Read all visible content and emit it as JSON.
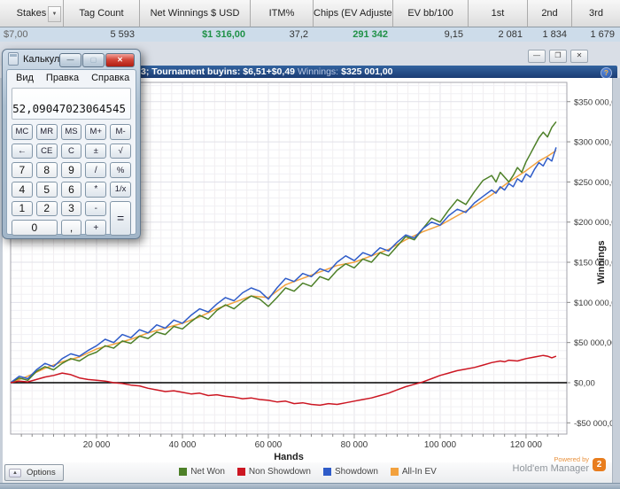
{
  "report": {
    "headers": [
      "Stakes",
      "Tag Count",
      "Net Winnings $ USD",
      "ITM%",
      "Chips (EV Adjusted)",
      "EV bb/100",
      "1st",
      "2nd",
      "3rd"
    ],
    "values": [
      "$7,00",
      "5 593",
      "$1 316,00",
      "37,2",
      "291 342",
      "9,15",
      "2 081",
      "1 834",
      "1 679"
    ]
  },
  "icons": {
    "dropdown": "▼",
    "window_minimize": "—",
    "window_restore": "❐",
    "window_close": "✕",
    "help": "?",
    "options_arrow": "▲",
    "calc_minimize": "—",
    "calc_maximize": "▢",
    "calc_close": "✕"
  },
  "graph_window": {
    "title_left": "3; Tournament buyins: $6,51+$0,49",
    "winnings_label": "Winnings:",
    "winnings_value": "$325 001,00"
  },
  "calculator": {
    "title": "Калькулятор",
    "menu": [
      "Вид",
      "Правка",
      "Справка"
    ],
    "display": "52,09047023064545",
    "keys": [
      "MC",
      "MR",
      "MS",
      "M+",
      "M-",
      "←",
      "CE",
      "C",
      "±",
      "√",
      "7",
      "8",
      "9",
      "/",
      "%",
      "4",
      "5",
      "6",
      "*",
      "1/x",
      "1",
      "2",
      "3",
      "-",
      "=",
      "0",
      ",",
      "+"
    ]
  },
  "footer": {
    "options_label": "Options",
    "powered_by": "Powered by",
    "brand": "Hold'em Manager",
    "brand_badge": "2"
  },
  "colors": {
    "positive_value": "#1f9147",
    "title_bar": "#1b3c74",
    "values_row_bg": "#cddcea"
  },
  "chart_data": {
    "type": "line",
    "xlabel": "Hands",
    "ylabel": "Winnings",
    "xlim": [
      0,
      129500
    ],
    "ylim": [
      -64000,
      374000
    ],
    "x_ticks": [
      20000,
      40000,
      60000,
      80000,
      100000,
      120000
    ],
    "x_tick_labels": [
      "20 000",
      "40 000",
      "60 000",
      "80 000",
      "100 000",
      "120 000"
    ],
    "y_ticks": [
      -50000,
      0,
      50000,
      100000,
      150000,
      200000,
      250000,
      300000,
      350000
    ],
    "y_tick_labels": [
      "-$50 000,00",
      "$0,00",
      "$50 000,00",
      "$100 000,00",
      "$150 000,00",
      "$200 000,00",
      "$250 000,00",
      "$300 000,00",
      "$350 000,00"
    ],
    "grid": true,
    "zero_line": true,
    "legend_position": "bottom",
    "series": [
      {
        "name": "Net Won",
        "color": "#4d8028",
        "points": [
          [
            0,
            0
          ],
          [
            2000,
            6000
          ],
          [
            4000,
            3000
          ],
          [
            6000,
            14000
          ],
          [
            8000,
            20000
          ],
          [
            10000,
            16000
          ],
          [
            12000,
            24000
          ],
          [
            14000,
            30000
          ],
          [
            16000,
            27000
          ],
          [
            18000,
            34000
          ],
          [
            20000,
            38000
          ],
          [
            22000,
            46000
          ],
          [
            24000,
            43000
          ],
          [
            26000,
            52000
          ],
          [
            28000,
            49000
          ],
          [
            30000,
            58000
          ],
          [
            32000,
            55000
          ],
          [
            34000,
            63000
          ],
          [
            36000,
            60000
          ],
          [
            38000,
            70000
          ],
          [
            40000,
            67000
          ],
          [
            42000,
            76000
          ],
          [
            44000,
            84000
          ],
          [
            46000,
            79000
          ],
          [
            48000,
            90000
          ],
          [
            50000,
            97000
          ],
          [
            52000,
            92000
          ],
          [
            54000,
            101000
          ],
          [
            56000,
            108000
          ],
          [
            58000,
            104000
          ],
          [
            60000,
            95000
          ],
          [
            62000,
            106000
          ],
          [
            64000,
            118000
          ],
          [
            66000,
            114000
          ],
          [
            68000,
            124000
          ],
          [
            70000,
            120000
          ],
          [
            72000,
            132000
          ],
          [
            74000,
            128000
          ],
          [
            76000,
            140000
          ],
          [
            78000,
            148000
          ],
          [
            80000,
            143000
          ],
          [
            82000,
            154000
          ],
          [
            84000,
            150000
          ],
          [
            86000,
            162000
          ],
          [
            88000,
            158000
          ],
          [
            90000,
            170000
          ],
          [
            92000,
            182000
          ],
          [
            94000,
            178000
          ],
          [
            96000,
            192000
          ],
          [
            98000,
            205000
          ],
          [
            100000,
            200000
          ],
          [
            102000,
            215000
          ],
          [
            104000,
            228000
          ],
          [
            106000,
            222000
          ],
          [
            108000,
            238000
          ],
          [
            110000,
            252000
          ],
          [
            112000,
            258000
          ],
          [
            113000,
            250000
          ],
          [
            114000,
            262000
          ],
          [
            115000,
            256000
          ],
          [
            116000,
            250000
          ],
          [
            117000,
            258000
          ],
          [
            118000,
            268000
          ],
          [
            119000,
            262000
          ],
          [
            120000,
            275000
          ],
          [
            121000,
            285000
          ],
          [
            122000,
            295000
          ],
          [
            123000,
            305000
          ],
          [
            124000,
            312000
          ],
          [
            125000,
            306000
          ],
          [
            126000,
            318000
          ],
          [
            127000,
            325000
          ]
        ]
      },
      {
        "name": "Non Showdown",
        "color": "#cc1622",
        "points": [
          [
            0,
            0
          ],
          [
            2000,
            2000
          ],
          [
            4000,
            1000
          ],
          [
            6000,
            4000
          ],
          [
            8000,
            7000
          ],
          [
            10000,
            9000
          ],
          [
            12000,
            12000
          ],
          [
            14000,
            10000
          ],
          [
            16000,
            6000
          ],
          [
            18000,
            4000
          ],
          [
            20000,
            3000
          ],
          [
            22000,
            2000
          ],
          [
            24000,
            0
          ],
          [
            26000,
            -1000
          ],
          [
            28000,
            -3000
          ],
          [
            30000,
            -4000
          ],
          [
            32000,
            -7000
          ],
          [
            34000,
            -9000
          ],
          [
            36000,
            -11000
          ],
          [
            38000,
            -10000
          ],
          [
            40000,
            -12000
          ],
          [
            42000,
            -14000
          ],
          [
            44000,
            -13000
          ],
          [
            46000,
            -16000
          ],
          [
            48000,
            -15000
          ],
          [
            50000,
            -17000
          ],
          [
            52000,
            -18000
          ],
          [
            54000,
            -20000
          ],
          [
            56000,
            -19000
          ],
          [
            58000,
            -21000
          ],
          [
            60000,
            -22000
          ],
          [
            62000,
            -24000
          ],
          [
            64000,
            -23000
          ],
          [
            66000,
            -26000
          ],
          [
            68000,
            -25000
          ],
          [
            70000,
            -27000
          ],
          [
            72000,
            -28000
          ],
          [
            74000,
            -26000
          ],
          [
            76000,
            -27000
          ],
          [
            78000,
            -25000
          ],
          [
            80000,
            -23000
          ],
          [
            82000,
            -21000
          ],
          [
            84000,
            -19000
          ],
          [
            86000,
            -16000
          ],
          [
            88000,
            -13000
          ],
          [
            90000,
            -9000
          ],
          [
            92000,
            -5000
          ],
          [
            94000,
            -2000
          ],
          [
            96000,
            1000
          ],
          [
            98000,
            5000
          ],
          [
            100000,
            9000
          ],
          [
            102000,
            12000
          ],
          [
            104000,
            15000
          ],
          [
            106000,
            17000
          ],
          [
            108000,
            19000
          ],
          [
            110000,
            22000
          ],
          [
            112000,
            25000
          ],
          [
            114000,
            27000
          ],
          [
            115000,
            26000
          ],
          [
            116000,
            28000
          ],
          [
            118000,
            27000
          ],
          [
            120000,
            30000
          ],
          [
            122000,
            32000
          ],
          [
            124000,
            34000
          ],
          [
            125000,
            33000
          ],
          [
            126000,
            31000
          ],
          [
            127000,
            33000
          ]
        ]
      },
      {
        "name": "Showdown",
        "color": "#2f5cc9",
        "points": [
          [
            0,
            0
          ],
          [
            2000,
            8000
          ],
          [
            4000,
            5000
          ],
          [
            6000,
            16000
          ],
          [
            8000,
            24000
          ],
          [
            10000,
            20000
          ],
          [
            12000,
            30000
          ],
          [
            14000,
            36000
          ],
          [
            16000,
            33000
          ],
          [
            18000,
            40000
          ],
          [
            20000,
            46000
          ],
          [
            22000,
            54000
          ],
          [
            24000,
            50000
          ],
          [
            26000,
            60000
          ],
          [
            28000,
            56000
          ],
          [
            30000,
            66000
          ],
          [
            32000,
            62000
          ],
          [
            34000,
            72000
          ],
          [
            36000,
            68000
          ],
          [
            38000,
            78000
          ],
          [
            40000,
            74000
          ],
          [
            42000,
            84000
          ],
          [
            44000,
            92000
          ],
          [
            46000,
            88000
          ],
          [
            48000,
            98000
          ],
          [
            50000,
            106000
          ],
          [
            52000,
            102000
          ],
          [
            54000,
            112000
          ],
          [
            56000,
            118000
          ],
          [
            58000,
            114000
          ],
          [
            60000,
            104000
          ],
          [
            62000,
            118000
          ],
          [
            64000,
            130000
          ],
          [
            66000,
            126000
          ],
          [
            68000,
            136000
          ],
          [
            70000,
            132000
          ],
          [
            72000,
            142000
          ],
          [
            74000,
            138000
          ],
          [
            76000,
            150000
          ],
          [
            78000,
            158000
          ],
          [
            80000,
            152000
          ],
          [
            82000,
            162000
          ],
          [
            84000,
            158000
          ],
          [
            86000,
            168000
          ],
          [
            88000,
            164000
          ],
          [
            90000,
            175000
          ],
          [
            92000,
            184000
          ],
          [
            94000,
            180000
          ],
          [
            96000,
            192000
          ],
          [
            98000,
            200000
          ],
          [
            100000,
            196000
          ],
          [
            102000,
            208000
          ],
          [
            104000,
            216000
          ],
          [
            106000,
            212000
          ],
          [
            108000,
            224000
          ],
          [
            110000,
            232000
          ],
          [
            112000,
            240000
          ],
          [
            113000,
            236000
          ],
          [
            114000,
            244000
          ],
          [
            115000,
            240000
          ],
          [
            116000,
            248000
          ],
          [
            117000,
            244000
          ],
          [
            118000,
            254000
          ],
          [
            119000,
            250000
          ],
          [
            120000,
            260000
          ],
          [
            121000,
            256000
          ],
          [
            122000,
            266000
          ],
          [
            123000,
            274000
          ],
          [
            124000,
            270000
          ],
          [
            125000,
            280000
          ],
          [
            126000,
            276000
          ],
          [
            127000,
            293000
          ]
        ]
      },
      {
        "name": "All-In EV",
        "color": "#f2a13e",
        "points": [
          [
            0,
            0
          ],
          [
            4000,
            8000
          ],
          [
            8000,
            18000
          ],
          [
            12000,
            26000
          ],
          [
            16000,
            32000
          ],
          [
            20000,
            42000
          ],
          [
            24000,
            48000
          ],
          [
            28000,
            54000
          ],
          [
            32000,
            62000
          ],
          [
            36000,
            68000
          ],
          [
            40000,
            74000
          ],
          [
            44000,
            82000
          ],
          [
            48000,
            92000
          ],
          [
            52000,
            100000
          ],
          [
            56000,
            108000
          ],
          [
            60000,
            106000
          ],
          [
            64000,
            122000
          ],
          [
            68000,
            130000
          ],
          [
            72000,
            138000
          ],
          [
            76000,
            146000
          ],
          [
            80000,
            150000
          ],
          [
            84000,
            158000
          ],
          [
            88000,
            166000
          ],
          [
            92000,
            178000
          ],
          [
            96000,
            188000
          ],
          [
            100000,
            196000
          ],
          [
            104000,
            208000
          ],
          [
            108000,
            220000
          ],
          [
            112000,
            234000
          ],
          [
            116000,
            250000
          ],
          [
            120000,
            264000
          ],
          [
            123000,
            276000
          ],
          [
            125000,
            282000
          ],
          [
            127000,
            289000
          ]
        ]
      }
    ]
  }
}
